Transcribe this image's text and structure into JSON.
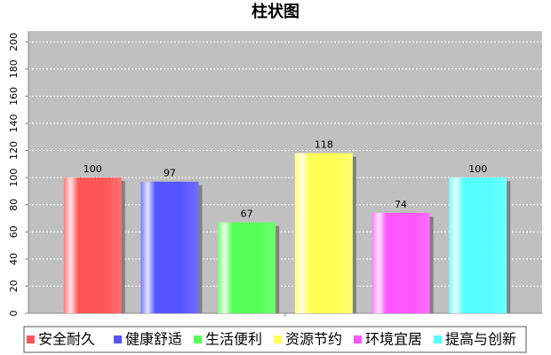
{
  "chart_data": {
    "type": "bar",
    "title": "柱状图",
    "categories": [
      null
    ],
    "series": [
      {
        "name": "安全耐久",
        "color": "#ff5555",
        "values": [
          100
        ]
      },
      {
        "name": "健康舒适",
        "color": "#5555ff",
        "values": [
          97
        ]
      },
      {
        "name": "生活便利",
        "color": "#55ff55",
        "values": [
          67
        ]
      },
      {
        "name": "资源节约",
        "color": "#ffff55",
        "values": [
          118
        ]
      },
      {
        "name": "环境宜居",
        "color": "#ff55ff",
        "values": [
          74
        ]
      },
      {
        "name": "提高与创新",
        "color": "#55ffff",
        "values": [
          100
        ]
      }
    ],
    "ylim": [
      0,
      208
    ],
    "yticks": [
      0,
      20,
      40,
      60,
      80,
      100,
      120,
      140,
      160,
      180,
      200
    ],
    "grid": true,
    "legend": "bottom"
  }
}
